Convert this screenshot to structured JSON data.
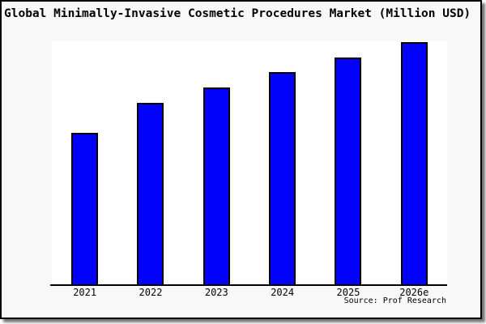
{
  "card": {
    "background": "#f8f8f8",
    "border_color": "#000000",
    "shadow_color": "#777777"
  },
  "chart_data": {
    "type": "bar",
    "title": "Global Minimally-Invasive Cosmetic Procedures Market (Million USD)",
    "categories": [
      "2021",
      "2022",
      "2023",
      "2024",
      "2025",
      "2026e"
    ],
    "values": [
      62.3,
      74.7,
      81.0,
      87.3,
      93.3,
      99.7
    ],
    "value_note": "relative bar heights in % of plot height; chart shows no numeric y-axis ticks or data labels",
    "xlabel": "",
    "ylabel": "",
    "grid": false,
    "legend": false,
    "plot_bg": "#ffffff",
    "bar_color": "#0202fa",
    "bar_border_color": "#000000",
    "source_label": "Source: Prof Research"
  }
}
